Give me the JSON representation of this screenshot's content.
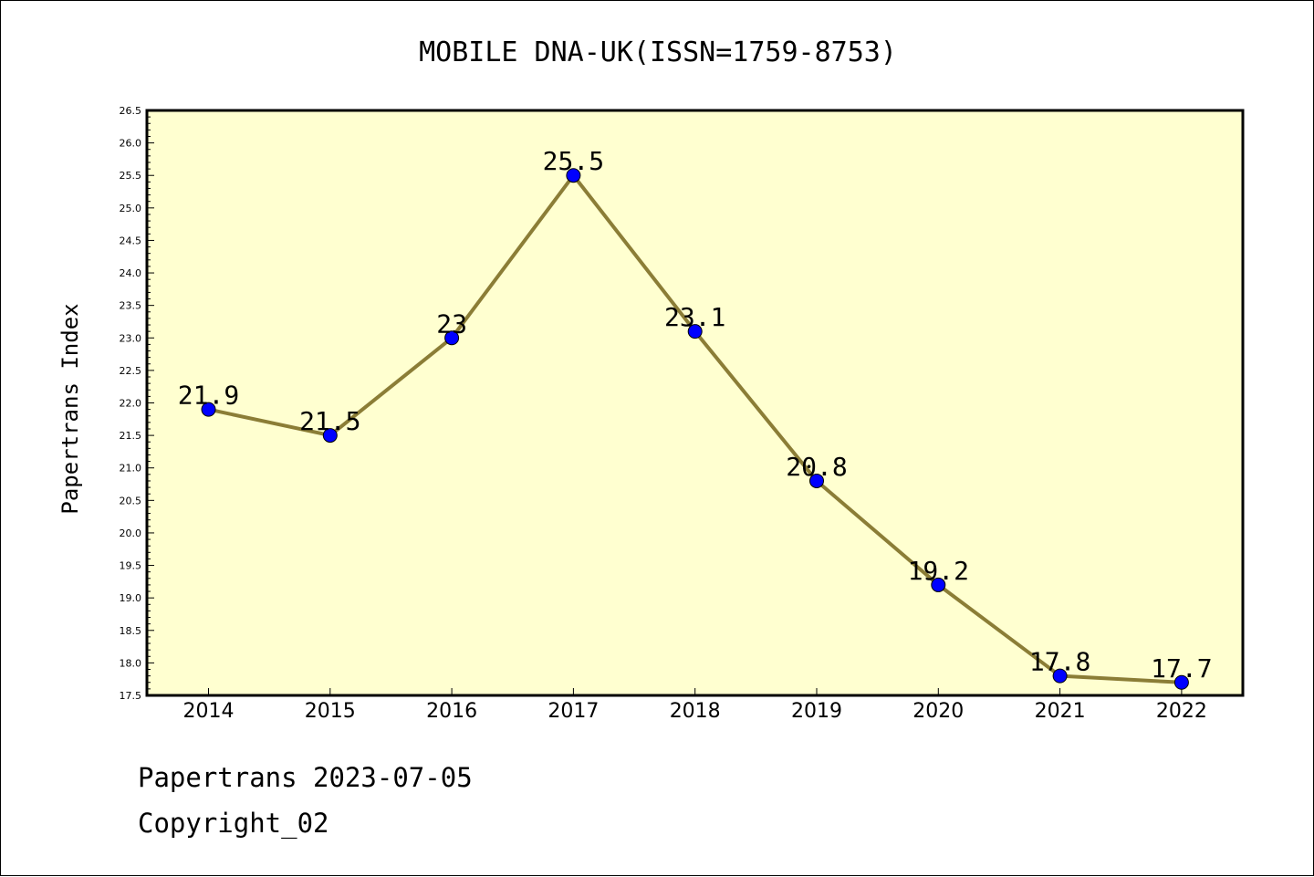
{
  "chart_data": {
    "type": "line",
    "title": "MOBILE DNA-UK(ISSN=1759-8753)",
    "xlabel": "",
    "ylabel": "Papertrans Index",
    "categories": [
      "2014",
      "2015",
      "2016",
      "2017",
      "2018",
      "2019",
      "2020",
      "2021",
      "2022"
    ],
    "series": [
      {
        "values": [
          21.9,
          21.5,
          23.0,
          25.5,
          23.1,
          20.8,
          19.2,
          17.8,
          17.7
        ],
        "point_labels": [
          "21.9",
          "21.5",
          "23",
          "25.5",
          "23.1",
          "20.8",
          "19.2",
          "17.8",
          "17.7"
        ]
      }
    ],
    "ylim": [
      17.5,
      26.5
    ],
    "yticks": [
      "17.5",
      "18.0",
      "18.5",
      "19.0",
      "19.5",
      "20.0",
      "20.5",
      "21.0",
      "21.5",
      "22.0",
      "22.5",
      "23.0",
      "23.5",
      "24.0",
      "24.5",
      "25.0",
      "25.5",
      "26.0",
      "26.5"
    ],
    "grid": false,
    "colors": {
      "plot_background": "#ffffd0",
      "line": "#8b7d36",
      "marker": "#0000ff"
    }
  },
  "footer": {
    "line1": "Papertrans 2023-07-05",
    "line2": "Copyright_02"
  }
}
